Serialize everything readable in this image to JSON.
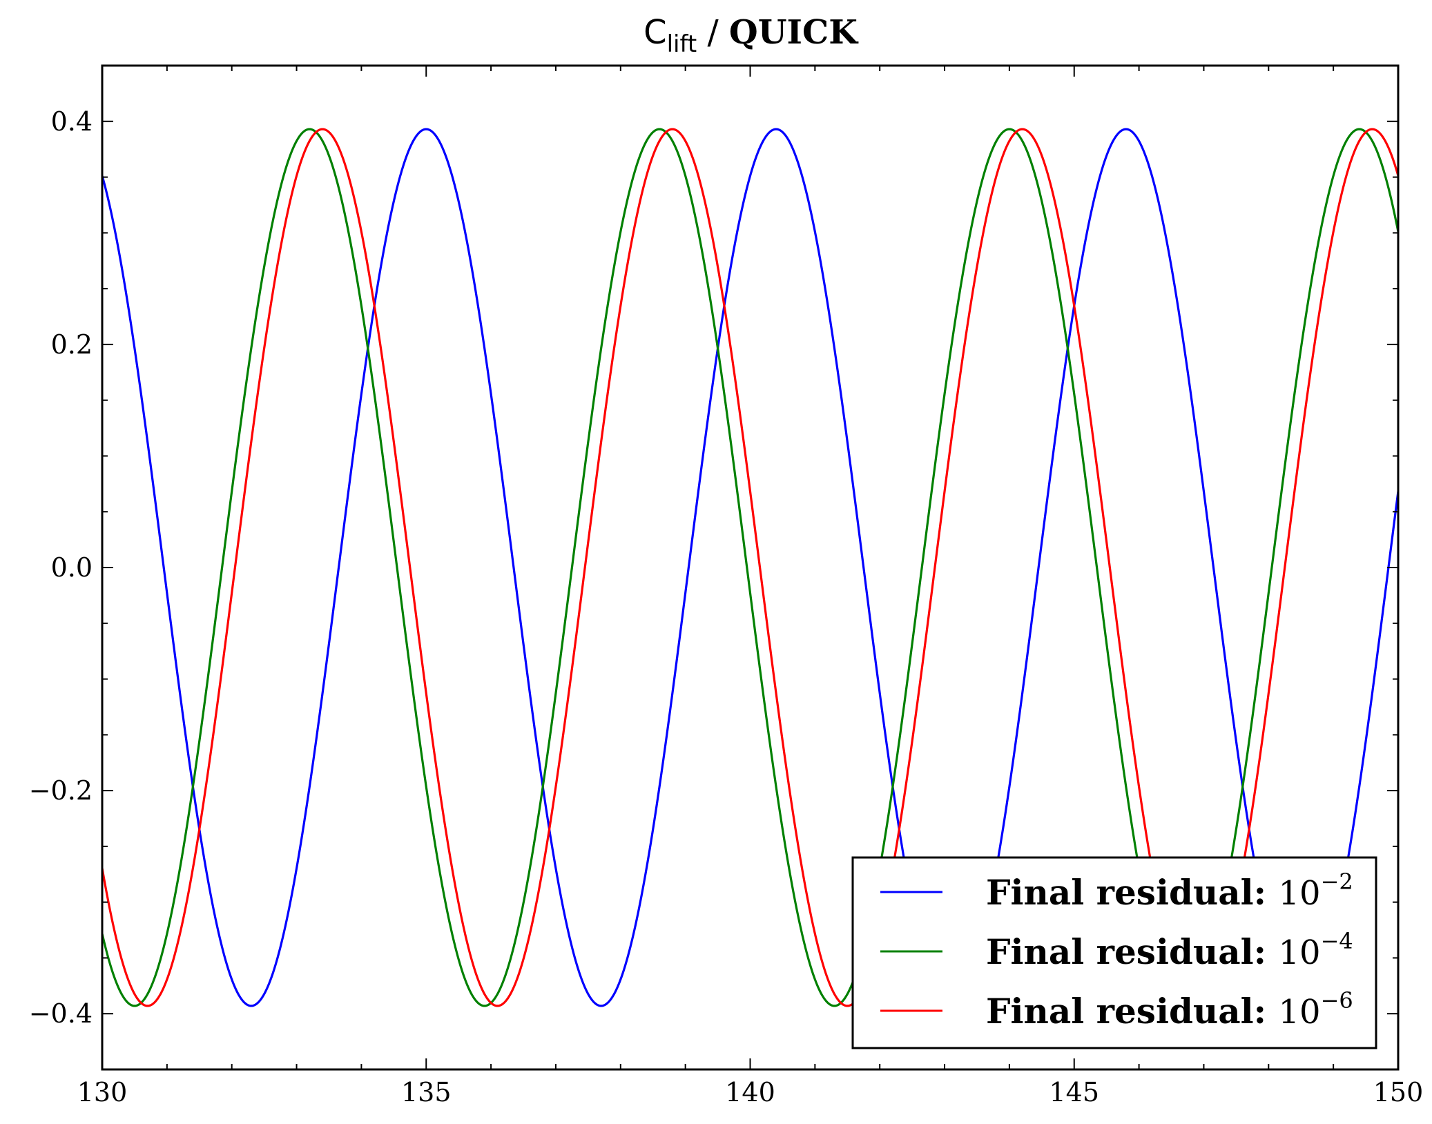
{
  "chart_data": {
    "type": "line",
    "title": {
      "symbol": "C",
      "subscript": "lift",
      "separator": " / ",
      "scheme": "QUICK"
    },
    "xlim": [
      130,
      150
    ],
    "ylim": [
      -0.45,
      0.45
    ],
    "x_ticks": [
      130,
      135,
      140,
      145,
      150
    ],
    "x_tick_labels": [
      "130",
      "135",
      "140",
      "145",
      "150"
    ],
    "y_ticks": [
      -0.4,
      -0.2,
      0.0,
      0.2,
      0.4
    ],
    "y_tick_labels": [
      "−0.4",
      "−0.2",
      "0.0",
      "0.2",
      "0.4"
    ],
    "grid": false,
    "legend_position": "lower-right",
    "series": [
      {
        "name": "Final residual: ",
        "legend_base": "10",
        "legend_exponent": "−2",
        "color": "#0000ff",
        "amplitude": 0.393,
        "period": 5.4,
        "peak_x": 135.0
      },
      {
        "name": "Final residual: ",
        "legend_base": "10",
        "legend_exponent": "−4",
        "color": "#008000",
        "amplitude": 0.393,
        "period": 5.4,
        "peak_x": 133.2
      },
      {
        "name": "Final residual: ",
        "legend_base": "10",
        "legend_exponent": "−6",
        "color": "#ff0000",
        "amplitude": 0.393,
        "period": 5.4,
        "peak_x": 133.4
      }
    ]
  }
}
